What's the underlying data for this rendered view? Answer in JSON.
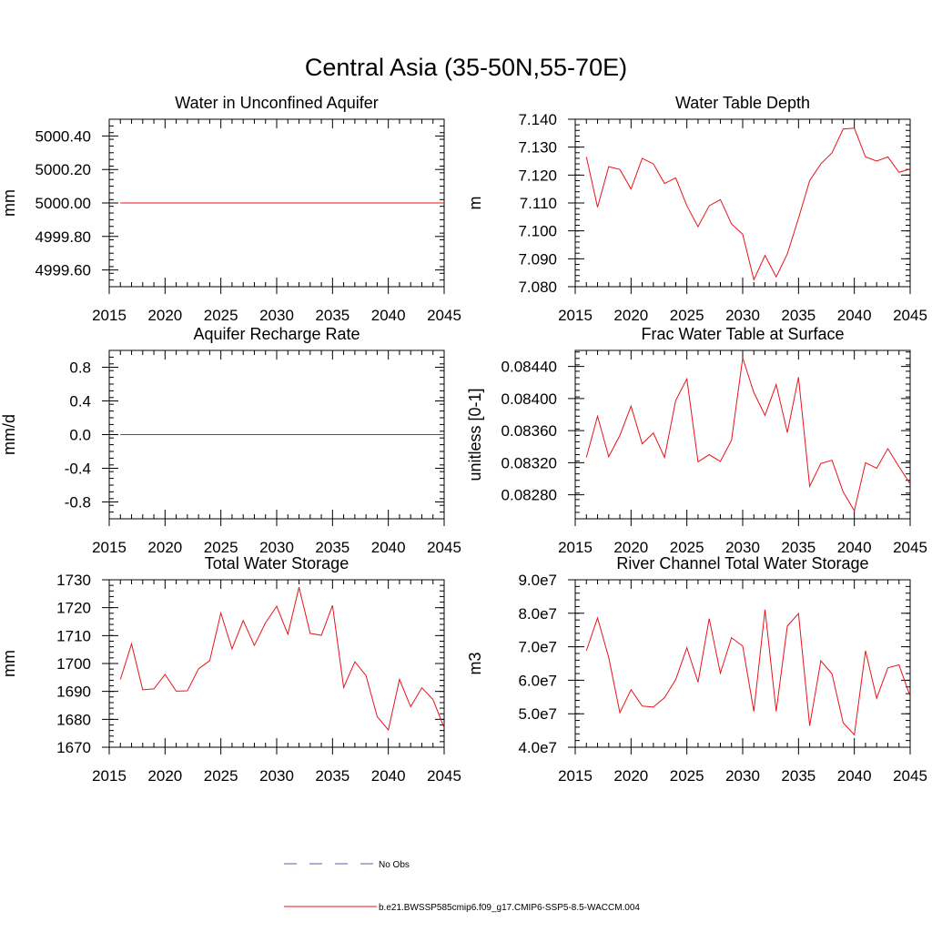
{
  "figure_title": "Central Asia (35-50N,55-70E)",
  "colors": {
    "series": "#e8131b",
    "obs": "#5a5aa8",
    "axis": "#000000"
  },
  "legend": [
    {
      "label": "No Obs",
      "style": "dashed",
      "color": "#5a5aa8"
    },
    {
      "label": "b.e21.BWSSP585cmip6.f09_g17.CMIP6-SSP5-8.5-WACCM.004",
      "style": "solid",
      "color": "#e8131b"
    }
  ],
  "chart_data": [
    {
      "type": "line",
      "title": "Water in Unconfined Aquifer",
      "ylabel": "mm",
      "xlim": [
        2015,
        2045
      ],
      "ylim": [
        4999.5,
        5000.5
      ],
      "xticks": [
        2015,
        2020,
        2025,
        2030,
        2035,
        2040,
        2045
      ],
      "xtick_labels": [
        "2015",
        "2020",
        "2025",
        "2030",
        "2035",
        "2040",
        "2045"
      ],
      "yticks": [
        4999.6,
        4999.8,
        5000.0,
        5000.2,
        5000.4
      ],
      "ytick_labels": [
        "4999.60",
        "4999.80",
        "5000.00",
        "5000.20",
        "5000.40"
      ],
      "yminor_step": 0.04,
      "x": [
        2016,
        2017,
        2018,
        2019,
        2020,
        2021,
        2022,
        2023,
        2024,
        2025,
        2026,
        2027,
        2028,
        2029,
        2030,
        2031,
        2032,
        2033,
        2034,
        2035,
        2036,
        2037,
        2038,
        2039,
        2040,
        2041,
        2042,
        2043,
        2044,
        2045
      ],
      "y": [
        5000,
        5000,
        5000,
        5000,
        5000,
        5000,
        5000,
        5000,
        5000,
        5000,
        5000,
        5000,
        5000,
        5000,
        5000,
        5000,
        5000,
        5000,
        5000,
        5000,
        5000,
        5000,
        5000,
        5000,
        5000,
        5000,
        5000,
        5000,
        5000,
        5000
      ]
    },
    {
      "type": "line",
      "title": "Water Table Depth",
      "ylabel": "m",
      "xlim": [
        2015,
        2045
      ],
      "ylim": [
        7.08,
        7.14
      ],
      "xticks": [
        2015,
        2020,
        2025,
        2030,
        2035,
        2040,
        2045
      ],
      "xtick_labels": [
        "2015",
        "2020",
        "2025",
        "2030",
        "2035",
        "2040",
        "2045"
      ],
      "yticks": [
        7.08,
        7.09,
        7.1,
        7.11,
        7.12,
        7.13,
        7.14
      ],
      "ytick_labels": [
        "7.080",
        "7.090",
        "7.100",
        "7.110",
        "7.120",
        "7.130",
        "7.140"
      ],
      "yminor_step": 0.002,
      "x": [
        2016,
        2017,
        2018,
        2019,
        2020,
        2021,
        2022,
        2023,
        2024,
        2025,
        2026,
        2027,
        2028,
        2029,
        2030,
        2031,
        2032,
        2033,
        2034,
        2035,
        2036,
        2037,
        2038,
        2039,
        2040,
        2041,
        2042,
        2043,
        2044,
        2045
      ],
      "y": [
        7.1265,
        7.1085,
        7.123,
        7.122,
        7.115,
        7.126,
        7.124,
        7.117,
        7.119,
        7.109,
        7.1015,
        7.109,
        7.1112,
        7.1025,
        7.0988,
        7.0825,
        7.0912,
        7.0835,
        7.0918,
        7.1045,
        7.118,
        7.124,
        7.128,
        7.1365,
        7.1368,
        7.1265,
        7.125,
        7.1265,
        7.121,
        7.1222
      ]
    },
    {
      "type": "line",
      "title": "Aquifer Recharge Rate",
      "ylabel": "mm/d",
      "xlim": [
        2015,
        2045
      ],
      "ylim": [
        -1.0,
        1.0
      ],
      "xticks": [
        2015,
        2020,
        2025,
        2030,
        2035,
        2040,
        2045
      ],
      "xtick_labels": [
        "2015",
        "2020",
        "2025",
        "2030",
        "2035",
        "2040",
        "2045"
      ],
      "yticks": [
        -0.8,
        -0.4,
        0.0,
        0.4,
        0.8
      ],
      "ytick_labels": [
        "-0.8",
        "-0.4",
        "0.0",
        "0.4",
        "0.8"
      ],
      "yminor_step": 0.08,
      "x": [
        2016,
        2017,
        2018,
        2019,
        2020,
        2021,
        2022,
        2023,
        2024,
        2025,
        2026,
        2027,
        2028,
        2029,
        2030,
        2031,
        2032,
        2033,
        2034,
        2035,
        2036,
        2037,
        2038,
        2039,
        2040,
        2041,
        2042,
        2043,
        2044,
        2045
      ],
      "y": [
        0,
        0,
        0,
        0,
        0,
        0,
        0,
        0,
        0,
        0,
        0,
        0,
        0,
        0,
        0,
        0,
        0,
        0,
        0,
        0,
        0,
        0,
        0,
        0,
        0,
        0,
        0,
        0,
        0,
        0
      ]
    },
    {
      "type": "line",
      "title": "Frac Water Table at Surface",
      "ylabel": "unitless [0-1]",
      "xlim": [
        2015,
        2045
      ],
      "ylim": [
        0.0825,
        0.0846
      ],
      "xticks": [
        2015,
        2020,
        2025,
        2030,
        2035,
        2040,
        2045
      ],
      "xtick_labels": [
        "2015",
        "2020",
        "2025",
        "2030",
        "2035",
        "2040",
        "2045"
      ],
      "yticks": [
        0.0828,
        0.0832,
        0.0836,
        0.084,
        0.0844
      ],
      "ytick_labels": [
        "0.08280",
        "0.08320",
        "0.08360",
        "0.08400",
        "0.08440"
      ],
      "yminor_step": 8e-05,
      "x": [
        2016,
        2017,
        2018,
        2019,
        2020,
        2021,
        2022,
        2023,
        2024,
        2025,
        2026,
        2027,
        2028,
        2029,
        2030,
        2031,
        2032,
        2033,
        2034,
        2035,
        2036,
        2037,
        2038,
        2039,
        2040,
        2041,
        2042,
        2043,
        2044,
        2045
      ],
      "y": [
        0.083265,
        0.08378,
        0.083275,
        0.08354,
        0.083905,
        0.083435,
        0.08357,
        0.083265,
        0.083975,
        0.084245,
        0.08321,
        0.0833,
        0.083215,
        0.08348,
        0.084505,
        0.084075,
        0.08379,
        0.084175,
        0.083575,
        0.084265,
        0.082905,
        0.08319,
        0.08323,
        0.082835,
        0.0826,
        0.0832,
        0.08313,
        0.083375,
        0.08315,
        0.082935
      ]
    },
    {
      "type": "line",
      "title": "Total Water Storage",
      "ylabel": "mm",
      "xlim": [
        2015,
        2045
      ],
      "ylim": [
        1670,
        1730
      ],
      "xticks": [
        2015,
        2020,
        2025,
        2030,
        2035,
        2040,
        2045
      ],
      "xtick_labels": [
        "2015",
        "2020",
        "2025",
        "2030",
        "2035",
        "2040",
        "2045"
      ],
      "yticks": [
        1670,
        1680,
        1690,
        1700,
        1710,
        1720,
        1730
      ],
      "ytick_labels": [
        "1670",
        "1680",
        "1690",
        "1700",
        "1710",
        "1720",
        "1730"
      ],
      "yminor_step": 2,
      "x": [
        2016,
        2017,
        2018,
        2019,
        2020,
        2021,
        2022,
        2023,
        2024,
        2025,
        2026,
        2027,
        2028,
        2029,
        2030,
        2031,
        2032,
        2033,
        2034,
        2035,
        2036,
        2037,
        2038,
        2039,
        2040,
        2041,
        2042,
        2043,
        2044,
        2045
      ],
      "y": [
        1694.3,
        1707.0,
        1690.6,
        1690.9,
        1696.1,
        1690.1,
        1690.2,
        1698.1,
        1701.0,
        1718.1,
        1705.2,
        1715.4,
        1706.5,
        1714.6,
        1720.5,
        1710.5,
        1727.3,
        1710.8,
        1710.1,
        1720.8,
        1691.4,
        1700.6,
        1695.7,
        1681.0,
        1676.2,
        1694.3,
        1684.5,
        1691.3,
        1687.1,
        1677.0
      ]
    },
    {
      "type": "line",
      "title": "River Channel Total Water Storage",
      "ylabel": "m3",
      "xlim": [
        2015,
        2045
      ],
      "ylim": [
        40000000,
        90000000
      ],
      "xticks": [
        2015,
        2020,
        2025,
        2030,
        2035,
        2040,
        2045
      ],
      "xtick_labels": [
        "2015",
        "2020",
        "2025",
        "2030",
        "2035",
        "2040",
        "2045"
      ],
      "yticks": [
        40000000,
        50000000,
        60000000,
        70000000,
        80000000,
        90000000
      ],
      "ytick_labels": [
        "4.0e7",
        "5.0e7",
        "6.0e7",
        "7.0e7",
        "8.0e7",
        "9.0e7"
      ],
      "yminor_step": 2000000,
      "x": [
        2016,
        2017,
        2018,
        2019,
        2020,
        2021,
        2022,
        2023,
        2024,
        2025,
        2026,
        2027,
        2028,
        2029,
        2030,
        2031,
        2032,
        2033,
        2034,
        2035,
        2036,
        2037,
        2038,
        2039,
        2040,
        2041,
        2042,
        2043,
        2044,
        2045
      ],
      "y": [
        68800000,
        78600000,
        66800000,
        50300000,
        57200000,
        52300000,
        52000000,
        54800000,
        60200000,
        69700000,
        59400000,
        78400000,
        62100000,
        72700000,
        70200000,
        50700000,
        81100000,
        50700000,
        76200000,
        79900000,
        46400000,
        65800000,
        61900000,
        47300000,
        43700000,
        68800000,
        54600000,
        63700000,
        64600000,
        55200000
      ]
    }
  ]
}
